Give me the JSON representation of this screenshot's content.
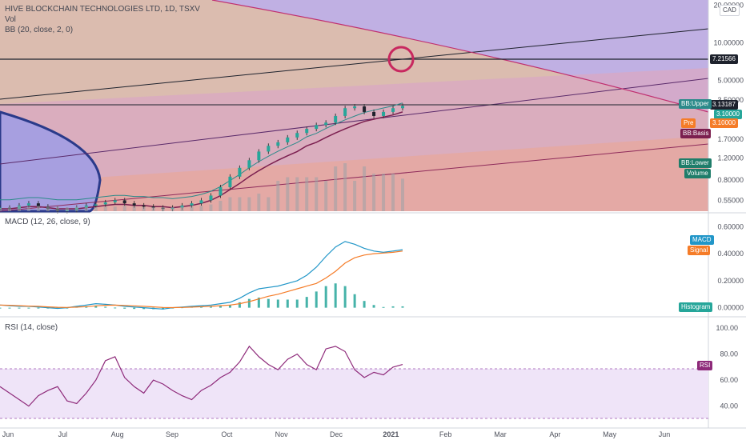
{
  "header": {
    "symbol_line": "HIVE BLOCKCHAIN TECHNOLOGIES LTD, 1D, TSXV",
    "vol_label": "Vol",
    "bb_label": "BB (20, close, 2, 0)",
    "macd_label": "MACD (12, 26, close, 9)",
    "rsi_label": "RSI (14, close)",
    "currency": "CAD"
  },
  "colors": {
    "bb_upper": "#2b8a8a",
    "bb_basis": "#7b1f4f",
    "bb_lower": "#1f7d6a",
    "volume": "#1f7d6a",
    "macd": "#2196c8",
    "signal": "#f57c28",
    "histogram": "#26a69a",
    "rsi": "#8e2a7a",
    "pre": "#f57c28",
    "price_tag": "#1e222d"
  },
  "price_axis": {
    "ticks": [
      "20.00000",
      "10.00000",
      "5.00000",
      "3.50000",
      "1.70000",
      "1.20000",
      "0.80000",
      "0.55000"
    ],
    "tick_values": [
      20,
      10,
      5,
      3.5,
      1.7,
      1.2,
      0.8,
      0.55
    ],
    "scale": "log",
    "tags": {
      "level": "7.21566",
      "last": "3.13187",
      "hidden": "3.10000",
      "pre_label": "Pre",
      "pre_value": "3.10000",
      "bb_upper": "BB:Upper",
      "bb_basis": "BB:Basis",
      "bb_lower": "BB:Lower",
      "volume": "Volume"
    }
  },
  "macd_axis": {
    "ticks": [
      "0.60000",
      "0.40000",
      "0.20000",
      "0.00000"
    ],
    "tick_values": [
      0.6,
      0.4,
      0.2,
      0.0
    ],
    "tags": {
      "macd": "MACD",
      "signal": "Signal",
      "histogram": "Histogram"
    }
  },
  "rsi_axis": {
    "ticks": [
      "100.00",
      "80.00",
      "60.00",
      "40.00"
    ],
    "tick_values": [
      100,
      80,
      60,
      40
    ],
    "tags": {
      "rsi": "RSI"
    },
    "bands": [
      70,
      30
    ]
  },
  "time_axis": {
    "labels": [
      "Jun",
      "Jul",
      "Aug",
      "Sep",
      "Oct",
      "Nov",
      "Dec",
      "2021",
      "Feb",
      "Mar",
      "Apr",
      "May",
      "Jun"
    ]
  },
  "chart_data": {
    "type": "line",
    "scale": "log",
    "price_range": [
      0.45,
      22
    ],
    "close": [
      0.48,
      0.47,
      0.5,
      0.52,
      0.49,
      0.47,
      0.45,
      0.46,
      0.48,
      0.5,
      0.51,
      0.53,
      0.55,
      0.52,
      0.5,
      0.49,
      0.48,
      0.47,
      0.48,
      0.5,
      0.52,
      0.55,
      0.6,
      0.7,
      0.85,
      1.0,
      1.15,
      1.35,
      1.5,
      1.6,
      1.75,
      1.9,
      2.05,
      2.2,
      2.3,
      2.6,
      3.0,
      3.1,
      2.8,
      2.6,
      2.8,
      3.0,
      3.13
    ],
    "bb_basis": [
      0.47,
      0.47,
      0.48,
      0.49,
      0.49,
      0.48,
      0.47,
      0.47,
      0.47,
      0.48,
      0.49,
      0.5,
      0.51,
      0.51,
      0.5,
      0.5,
      0.49,
      0.49,
      0.48,
      0.49,
      0.5,
      0.52,
      0.55,
      0.6,
      0.67,
      0.75,
      0.85,
      0.95,
      1.05,
      1.15,
      1.25,
      1.35,
      1.5,
      1.6,
      1.75,
      1.9,
      2.05,
      2.2,
      2.35,
      2.45,
      2.55,
      2.65,
      2.8
    ],
    "macd": [
      0.02,
      0.015,
      0.01,
      0.01,
      0.005,
      0.0,
      -0.005,
      0.0,
      0.01,
      0.02,
      0.03,
      0.025,
      0.02,
      0.01,
      0.005,
      0.0,
      -0.005,
      -0.01,
      0.0,
      0.005,
      0.01,
      0.015,
      0.02,
      0.03,
      0.04,
      0.07,
      0.11,
      0.14,
      0.15,
      0.16,
      0.18,
      0.2,
      0.24,
      0.3,
      0.38,
      0.45,
      0.49,
      0.47,
      0.44,
      0.42,
      0.41,
      0.42,
      0.43
    ],
    "signal": [
      0.02,
      0.018,
      0.015,
      0.012,
      0.01,
      0.006,
      0.003,
      0.002,
      0.004,
      0.008,
      0.014,
      0.018,
      0.019,
      0.017,
      0.014,
      0.01,
      0.006,
      0.002,
      0.001,
      0.002,
      0.004,
      0.007,
      0.01,
      0.015,
      0.02,
      0.03,
      0.045,
      0.065,
      0.085,
      0.1,
      0.12,
      0.14,
      0.16,
      0.18,
      0.22,
      0.27,
      0.33,
      0.37,
      0.39,
      0.4,
      0.405,
      0.41,
      0.42
    ],
    "rsi": [
      55,
      50,
      45,
      40,
      48,
      52,
      55,
      44,
      42,
      50,
      60,
      75,
      78,
      62,
      55,
      50,
      60,
      57,
      52,
      48,
      45,
      52,
      56,
      62,
      66,
      74,
      86,
      78,
      72,
      68,
      76,
      80,
      72,
      68,
      84,
      86,
      82,
      68,
      62,
      66,
      64,
      70,
      72
    ],
    "x_start": "2020-06-01",
    "x_end": "2021-01-07"
  }
}
